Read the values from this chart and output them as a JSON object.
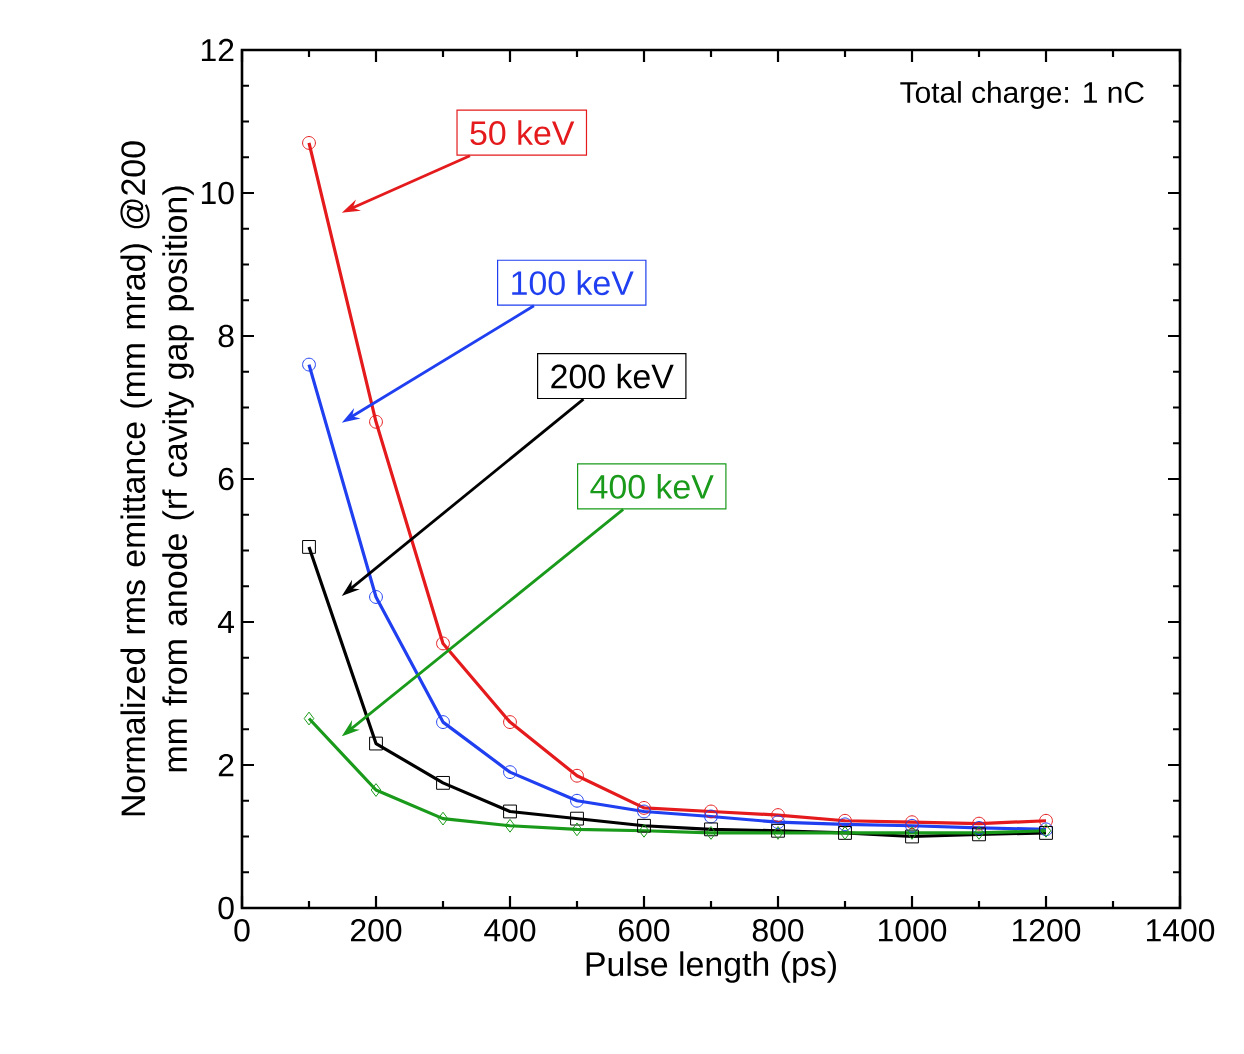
{
  "chart_data": {
    "type": "line",
    "xlabel": "Pulse length (ps)",
    "ylabel": "Normalized rms emittance (mm mrad) @200 mm from anode (rf cavity gap position)",
    "x": [
      100,
      200,
      300,
      400,
      500,
      600,
      700,
      800,
      900,
      1000,
      1100,
      1200
    ],
    "series": [
      {
        "name": "50 keV",
        "color": "#e41a1c",
        "marker": "circle",
        "values": [
          10.7,
          6.8,
          3.7,
          2.6,
          1.85,
          1.4,
          1.35,
          1.3,
          1.22,
          1.2,
          1.18,
          1.22
        ]
      },
      {
        "name": "100 keV",
        "color": "#1f3ff0",
        "marker": "circle",
        "values": [
          7.6,
          4.35,
          2.6,
          1.9,
          1.5,
          1.35,
          1.28,
          1.2,
          1.17,
          1.15,
          1.12,
          1.1
        ]
      },
      {
        "name": "200 keV",
        "color": "#000000",
        "marker": "square",
        "values": [
          5.05,
          2.3,
          1.75,
          1.35,
          1.25,
          1.15,
          1.1,
          1.08,
          1.05,
          1.0,
          1.03,
          1.05
        ]
      },
      {
        "name": "400 keV",
        "color": "#1a9a1a",
        "marker": "diamond",
        "values": [
          2.65,
          1.65,
          1.25,
          1.15,
          1.1,
          1.08,
          1.05,
          1.05,
          1.05,
          1.05,
          1.05,
          1.08
        ]
      }
    ],
    "annotations": [
      "Total charge: 1 nC"
    ],
    "xlim": [
      0,
      1400
    ],
    "xticks": [
      0,
      200,
      400,
      600,
      800,
      1000,
      1200,
      1400
    ],
    "ylim": [
      0,
      12
    ],
    "yticks": [
      0,
      2,
      4,
      6,
      8,
      10,
      12
    ],
    "grid": false,
    "legend": false
  }
}
